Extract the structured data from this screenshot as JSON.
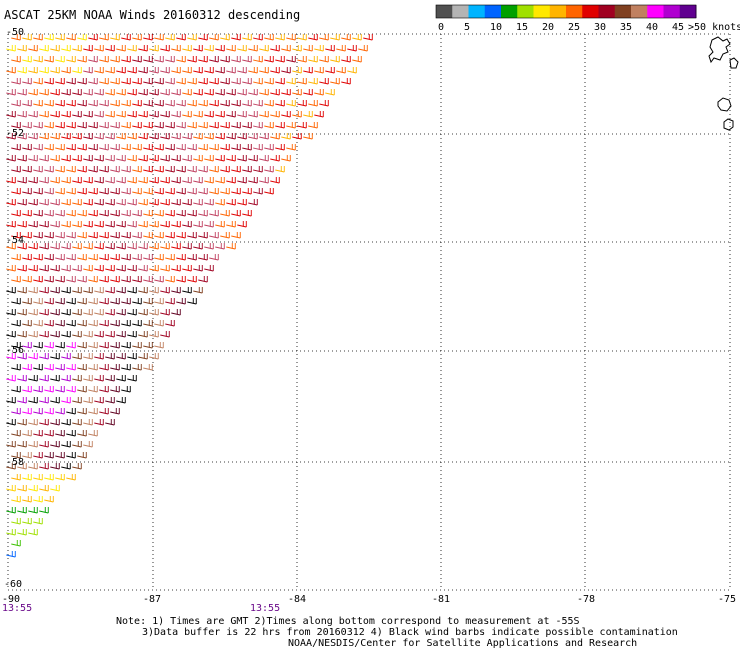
{
  "title": "ASCAT 25KM NOAA Winds 20160312 descending",
  "legend": {
    "unit": ">50 knots",
    "labels": [
      "0",
      "5",
      "10",
      "15",
      "20",
      "25",
      "30",
      "35",
      "40",
      "45"
    ],
    "colors": [
      "#505050",
      "#b4b4b4",
      "#00b4ff",
      "#0064ff",
      "#00a000",
      "#a0e000",
      "#ffe800",
      "#ffb400",
      "#ff6400",
      "#e00000",
      "#a00020",
      "#804020",
      "#c08060",
      "#ff00ff",
      "#b000d0",
      "#600090"
    ]
  },
  "axes": {
    "lon_labels": [
      "-90",
      "-87",
      "-84",
      "-81",
      "-78",
      "-75"
    ],
    "lat_labels": [
      "-50",
      "-52",
      "-54",
      "-56",
      "-58",
      "-60"
    ]
  },
  "times": [
    "13:55",
    "13:55"
  ],
  "notes": [
    "Note: 1) Times are GMT 2)Times along bottom correspond to measurement at -55S",
    "3)Data buffer is 22 hrs from 20160312 4) Black wind barbs indicate possible contamination",
    "NOAA/NESDIS/Center for Satellite Applications and Research"
  ]
}
